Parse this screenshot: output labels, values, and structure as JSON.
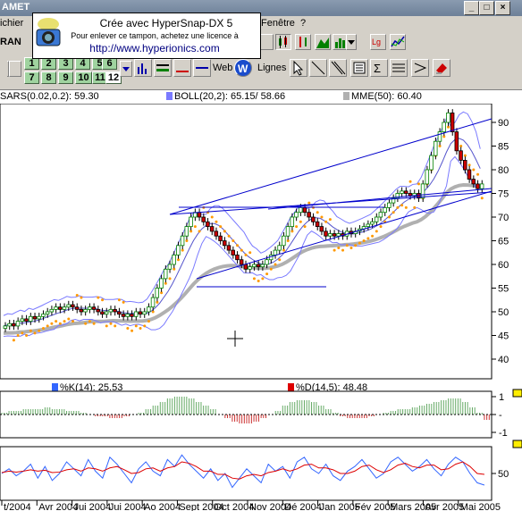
{
  "window": {
    "title": "AMET",
    "min": "_",
    "max": "□",
    "close": "×"
  },
  "menu": {
    "left": "ichier",
    "test": "Test",
    "fenetre": "Fenêtre",
    "help": "?"
  },
  "stamp": {
    "line1": "Crée avec HyperSnap-DX 5",
    "line2": "Pour enlever ce tampon, achetez une licence à",
    "line3": "http://www.hyperionics.com"
  },
  "toolbar": {
    "left_partial": "RAN",
    "period_buttons": [
      "1",
      "2",
      "3",
      "4",
      "5",
      "6",
      "7",
      "8",
      "9",
      "10",
      "11",
      "12"
    ],
    "web_label": "Web",
    "lines_label": "Lignes"
  },
  "indicators": {
    "sars": "SARS(0.02,0.2): 59.30",
    "boll": "BOLL(20,2): 65.15/ 58.66",
    "mme": "MME(50): 60.40",
    "k": "%K(14): 25.53",
    "d": "%D(14,5): 48.48"
  },
  "price_axis": [
    "90",
    "85",
    "80",
    "75",
    "70",
    "65",
    "60",
    "55",
    "50",
    "45",
    "40"
  ],
  "macd_axis": [
    "1",
    "-",
    "-1"
  ],
  "stoch_axis": [
    "50"
  ],
  "date_axis": [
    "t/2004",
    "Avr 2004",
    "Jui 2004",
    "Jui 2004",
    "Ao 2004",
    "Sept 2004",
    "Oct 2004",
    "Nov 2004",
    "Dé 2004",
    "Jan 2005",
    "Fév 2005",
    "Mars 2005",
    "Avr 2005",
    "Mai 2005"
  ],
  "colors": {
    "boll": "#7a7aff",
    "mme": "#b0b0b0",
    "sar": "#ff9900",
    "trend": "#0000cc",
    "k": "#3366ff",
    "d": "#dd0000",
    "up": "#008000",
    "down": "#cc0000",
    "histo_up": "#66aa66",
    "histo_down": "#cc3333"
  },
  "chart_data": {
    "type": "candlestick",
    "ylim": [
      37,
      93
    ],
    "closes": [
      47,
      47.5,
      47,
      48,
      48.5,
      48,
      49,
      48.5,
      49,
      49.5,
      50,
      50.5,
      51,
      50.5,
      51,
      51.5,
      51,
      50.5,
      50,
      50.5,
      51,
      50.5,
      50,
      49.5,
      50,
      50.5,
      50,
      49.5,
      49,
      49.5,
      49,
      50,
      49.5,
      50,
      51,
      53,
      55,
      57,
      59,
      60,
      62,
      64,
      66,
      68,
      70,
      71,
      70,
      69,
      68,
      67,
      66,
      65,
      64,
      63,
      62,
      61,
      60,
      59,
      59.5,
      60,
      59.5,
      60,
      61,
      62,
      63,
      64,
      66,
      68,
      70,
      71,
      72,
      71,
      70,
      69,
      68,
      67,
      66,
      66.5,
      66,
      66.5,
      66,
      67,
      66.5,
      67,
      67.5,
      68,
      68.5,
      69,
      70,
      71,
      72,
      73,
      74,
      75,
      75.5,
      75,
      74.5,
      75,
      74,
      77,
      80,
      83,
      86,
      88,
      90,
      92,
      88,
      84,
      82,
      80,
      78,
      77,
      76,
      77
    ],
    "macd": [
      0.1,
      0.2,
      0.2,
      0.3,
      0.3,
      0.3,
      0.4,
      0.3,
      0.3,
      0.2,
      0.2,
      0.1,
      0,
      -0.1,
      -0.1,
      -0.2,
      -0.2,
      -0.1,
      0,
      0.1,
      0.3,
      0.5,
      0.7,
      0.9,
      1,
      1,
      0.9,
      0.7,
      0.5,
      0.3,
      0,
      -0.2,
      -0.4,
      -0.5,
      -0.5,
      -0.4,
      -0.2,
      0,
      0.2,
      0.5,
      0.7,
      0.8,
      0.8,
      0.7,
      0.5,
      0.3,
      0.1,
      -0.1,
      -0.2,
      -0.2,
      -0.2,
      -0.1,
      0,
      0.1,
      0.2,
      0.3,
      0.3,
      0.4,
      0.5,
      0.6,
      0.7,
      0.8,
      0.9,
      0.9,
      0.7,
      0.4,
      0.1,
      -0.3
    ],
    "k": [
      50,
      60,
      45,
      55,
      70,
      40,
      65,
      35,
      50,
      75,
      60,
      45,
      80,
      55,
      40,
      85,
      70,
      50,
      30,
      60,
      75,
      55,
      45,
      80,
      65,
      90,
      70,
      55,
      40,
      60,
      35,
      50,
      20,
      40,
      60,
      45,
      30,
      70,
      55,
      65,
      40,
      75,
      85,
      60,
      50,
      70,
      45,
      35,
      55,
      65,
      80,
      60,
      40,
      50,
      75,
      85,
      70,
      55,
      65,
      80,
      60,
      45,
      70,
      85,
      75,
      50,
      30,
      25
    ],
    "d": [
      52,
      55,
      53,
      55,
      58,
      55,
      57,
      52,
      53,
      58,
      60,
      55,
      62,
      60,
      55,
      62,
      65,
      58,
      50,
      52,
      60,
      62,
      55,
      62,
      65,
      75,
      72,
      65,
      55,
      55,
      48,
      48,
      40,
      38,
      45,
      48,
      45,
      52,
      55,
      60,
      55,
      60,
      68,
      70,
      62,
      62,
      58,
      50,
      50,
      55,
      65,
      68,
      58,
      52,
      58,
      68,
      72,
      65,
      62,
      68,
      68,
      58,
      60,
      70,
      75,
      65,
      50,
      48
    ]
  }
}
